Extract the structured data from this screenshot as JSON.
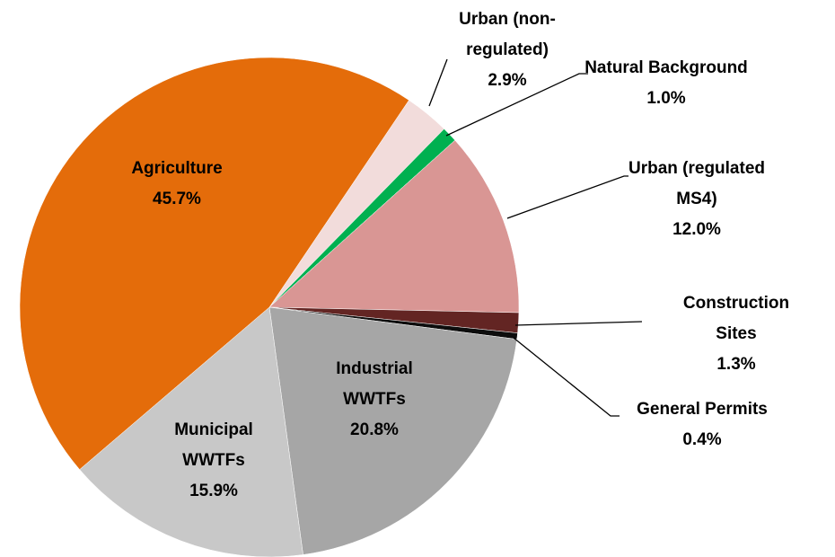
{
  "chart_data": {
    "type": "pie",
    "categories": [
      "Urban (non-\nregulated)",
      "Natural Background",
      "Urban (regulated\nMS4)",
      "Construction Sites",
      "General Permits",
      "Industrial\nWWTFs",
      "Municipal\nWWTFs",
      "Agriculture"
    ],
    "values": [
      2.9,
      1.0,
      12.0,
      1.3,
      0.4,
      20.8,
      15.9,
      45.7
    ],
    "value_labels": [
      "2.9%",
      "1.0%",
      "12.0%",
      "1.3%",
      "0.4%",
      "20.8%",
      "15.9%",
      "45.7%"
    ],
    "colors": [
      "#f2dcdb",
      "#00b050",
      "#d99694",
      "#632523",
      "#0d0d0d",
      "#a6a6a6",
      "#c8c8c8",
      "#e46c0a"
    ]
  }
}
